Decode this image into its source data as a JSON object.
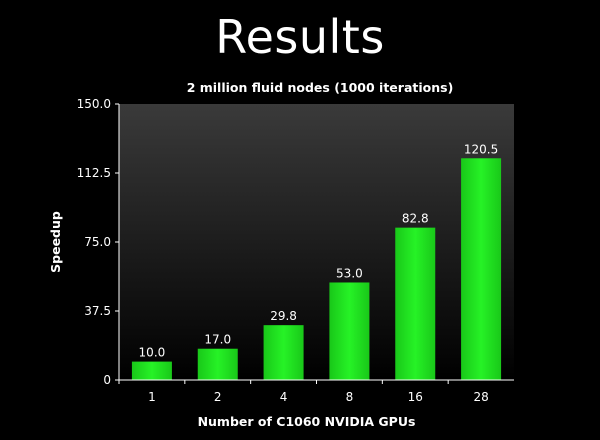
{
  "slide": {
    "title": "Results"
  },
  "colors": {
    "bar": "#22ee22",
    "background": "#000000",
    "plot_top": "#3a3a3a",
    "plot_bottom": "#000000"
  },
  "chart_data": {
    "type": "bar",
    "title": "2 million fluid nodes (1000 iterations)",
    "xlabel": "Number of C1060 NVIDIA GPUs",
    "ylabel": "Speedup",
    "categories": [
      "1",
      "2",
      "4",
      "8",
      "16",
      "28"
    ],
    "values": [
      10.0,
      17.0,
      29.8,
      53.0,
      82.8,
      120.5
    ],
    "data_labels": [
      "10.0",
      "17.0",
      "29.8",
      "53.0",
      "82.8",
      "120.5"
    ],
    "ylim": [
      0,
      150
    ],
    "yticks": [
      0,
      37.5,
      75,
      112.5,
      150
    ],
    "ytick_labels": [
      "0",
      "37.5",
      "75.0",
      "112.5",
      "150.0"
    ],
    "grid": false,
    "legend": "none"
  }
}
